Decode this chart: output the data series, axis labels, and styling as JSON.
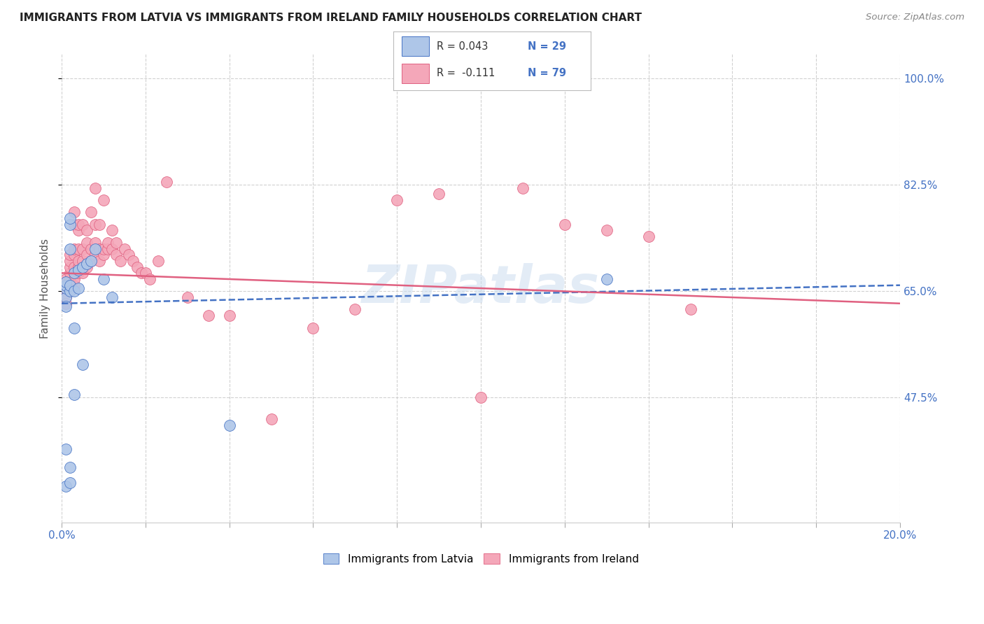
{
  "title": "IMMIGRANTS FROM LATVIA VS IMMIGRANTS FROM IRELAND FAMILY HOUSEHOLDS CORRELATION CHART",
  "source": "Source: ZipAtlas.com",
  "ylabel": "Family Households",
  "ytick_vals": [
    0.475,
    0.65,
    0.825,
    1.0
  ],
  "ytick_labels": [
    "47.5%",
    "65.0%",
    "82.5%",
    "100.0%"
  ],
  "color_latvia": "#aec6e8",
  "color_ireland": "#f4a7b9",
  "color_blue": "#4472c4",
  "color_pink": "#e06080",
  "xlim": [
    0.0,
    0.2
  ],
  "ylim": [
    0.27,
    1.04
  ],
  "watermark": "ZIPatlas",
  "latvia_x": [
    0.001,
    0.001,
    0.001,
    0.001,
    0.001,
    0.002,
    0.002,
    0.002,
    0.002,
    0.003,
    0.003,
    0.003,
    0.004,
    0.004,
    0.005,
    0.005,
    0.006,
    0.007,
    0.008,
    0.01,
    0.012,
    0.002,
    0.001,
    0.002,
    0.003,
    0.001,
    0.002,
    0.13,
    0.04
  ],
  "latvia_y": [
    0.64,
    0.655,
    0.66,
    0.665,
    0.39,
    0.65,
    0.76,
    0.77,
    0.66,
    0.65,
    0.68,
    0.48,
    0.655,
    0.685,
    0.69,
    0.53,
    0.695,
    0.7,
    0.72,
    0.67,
    0.64,
    0.36,
    0.33,
    0.335,
    0.59,
    0.625,
    0.72,
    0.67,
    0.43
  ],
  "ireland_x": [
    0.001,
    0.001,
    0.001,
    0.001,
    0.001,
    0.002,
    0.002,
    0.002,
    0.002,
    0.002,
    0.002,
    0.002,
    0.002,
    0.002,
    0.003,
    0.003,
    0.003,
    0.003,
    0.003,
    0.003,
    0.003,
    0.003,
    0.004,
    0.004,
    0.004,
    0.004,
    0.004,
    0.004,
    0.005,
    0.005,
    0.005,
    0.005,
    0.006,
    0.006,
    0.006,
    0.006,
    0.007,
    0.007,
    0.007,
    0.008,
    0.008,
    0.008,
    0.008,
    0.009,
    0.009,
    0.009,
    0.01,
    0.01,
    0.01,
    0.011,
    0.011,
    0.012,
    0.012,
    0.013,
    0.013,
    0.014,
    0.015,
    0.016,
    0.017,
    0.018,
    0.019,
    0.02,
    0.021,
    0.023,
    0.025,
    0.03,
    0.035,
    0.04,
    0.06,
    0.07,
    0.08,
    0.09,
    0.15,
    0.05,
    0.1,
    0.11,
    0.12,
    0.13,
    0.14
  ],
  "ireland_y": [
    0.65,
    0.66,
    0.67,
    0.64,
    0.63,
    0.65,
    0.655,
    0.66,
    0.665,
    0.67,
    0.68,
    0.69,
    0.7,
    0.71,
    0.66,
    0.67,
    0.68,
    0.69,
    0.71,
    0.72,
    0.76,
    0.78,
    0.68,
    0.69,
    0.7,
    0.72,
    0.75,
    0.76,
    0.68,
    0.7,
    0.72,
    0.76,
    0.69,
    0.71,
    0.73,
    0.75,
    0.7,
    0.72,
    0.78,
    0.71,
    0.73,
    0.76,
    0.82,
    0.7,
    0.72,
    0.76,
    0.71,
    0.72,
    0.8,
    0.72,
    0.73,
    0.72,
    0.75,
    0.71,
    0.73,
    0.7,
    0.72,
    0.71,
    0.7,
    0.69,
    0.68,
    0.68,
    0.67,
    0.7,
    0.83,
    0.64,
    0.61,
    0.61,
    0.59,
    0.62,
    0.8,
    0.81,
    0.62,
    0.44,
    0.475,
    0.82,
    0.76,
    0.75,
    0.74
  ],
  "latvia_line_x": [
    0.0,
    0.2
  ],
  "latvia_line_y": [
    0.63,
    0.66
  ],
  "ireland_line_x": [
    0.0,
    0.2
  ],
  "ireland_line_y": [
    0.68,
    0.63
  ]
}
